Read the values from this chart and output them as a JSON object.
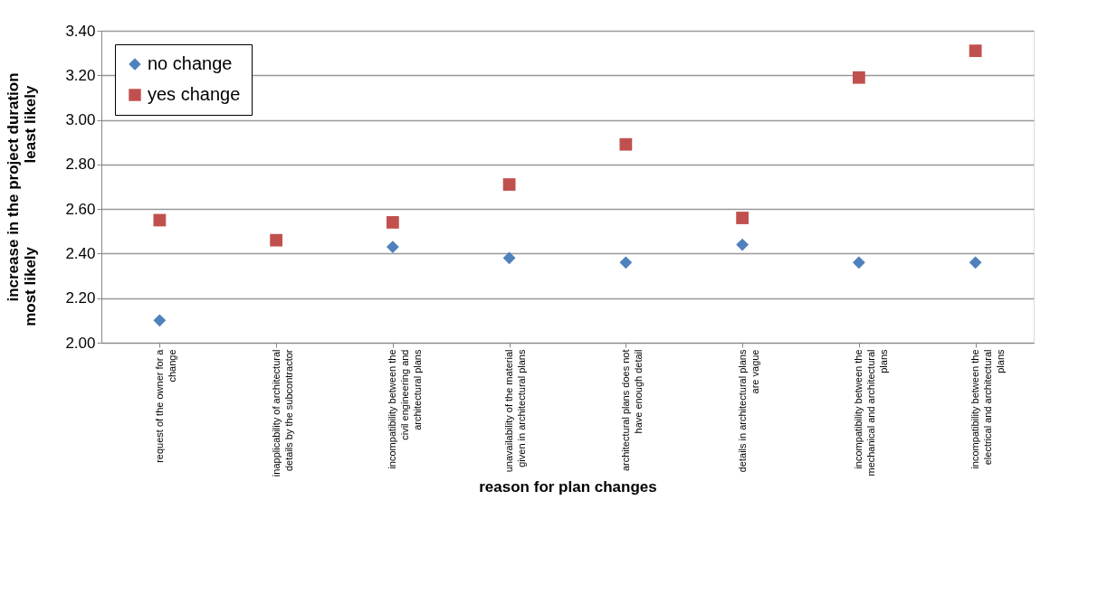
{
  "chart_data": {
    "type": "scatter",
    "xlabel": "reason for plan changes",
    "ylabel": "increase in the project duration",
    "annotations": [
      "least likely",
      "most likely"
    ],
    "categories": [
      "request of the owner for a change",
      "inapplicability of architectural details by the subcontractor",
      "incompatibility between the civil engineering and architectural plans",
      "unavailability of the material given in architectural plans",
      "architectural plans does not have enough detail",
      "details in architectural plans are vague",
      "incompatibility between the mechanical and architectural plans",
      "incompatibility between the electrical and architectural plans"
    ],
    "series": [
      {
        "name": "no change",
        "color": "#4f81bd",
        "marker": "diamond",
        "values": [
          2.1,
          null,
          2.43,
          2.38,
          2.36,
          2.44,
          2.36,
          2.36
        ]
      },
      {
        "name": "yes change",
        "color": "#c0504d",
        "marker": "square",
        "values": [
          2.55,
          2.46,
          2.54,
          2.71,
          2.89,
          2.56,
          3.19,
          3.31
        ]
      }
    ],
    "ylim": [
      2.0,
      3.4
    ],
    "yticks": [
      {
        "value": 2.0,
        "label": "2.00"
      },
      {
        "value": 2.2,
        "label": "2.20"
      },
      {
        "value": 2.4,
        "label": "2.40"
      },
      {
        "value": 2.6,
        "label": "2.60"
      },
      {
        "value": 2.8,
        "label": "2.80"
      },
      {
        "value": 3.0,
        "label": "3.00"
      },
      {
        "value": 3.2,
        "label": "3.20"
      },
      {
        "value": 3.4,
        "label": "3.40"
      }
    ],
    "grid": "y",
    "legend": "top left"
  }
}
